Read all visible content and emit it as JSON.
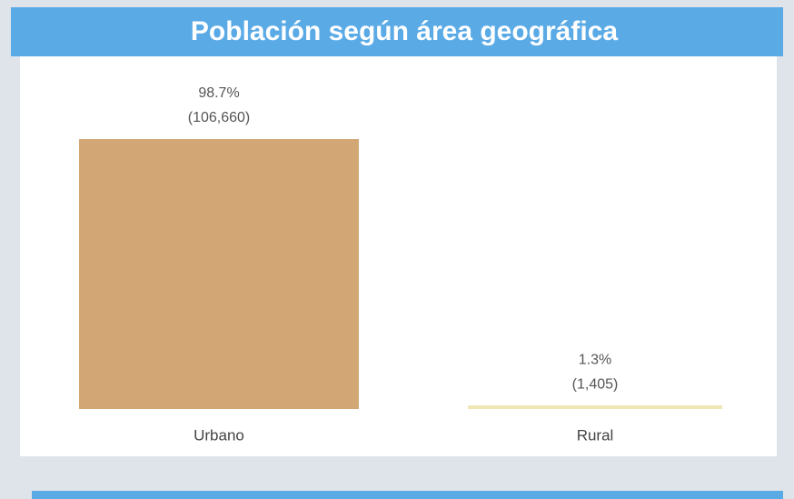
{
  "chart_data": {
    "type": "bar",
    "title": "Población según área geográfica",
    "categories": [
      "Urbano",
      "Rural"
    ],
    "values": [
      98.7,
      1.3
    ],
    "value_labels": [
      "98.7%",
      "1.3%"
    ],
    "counts": [
      106660,
      1405
    ],
    "count_labels": [
      "(106,660)",
      "(1,405)"
    ],
    "colors": [
      "#d2a775",
      "#efe6b4"
    ]
  }
}
